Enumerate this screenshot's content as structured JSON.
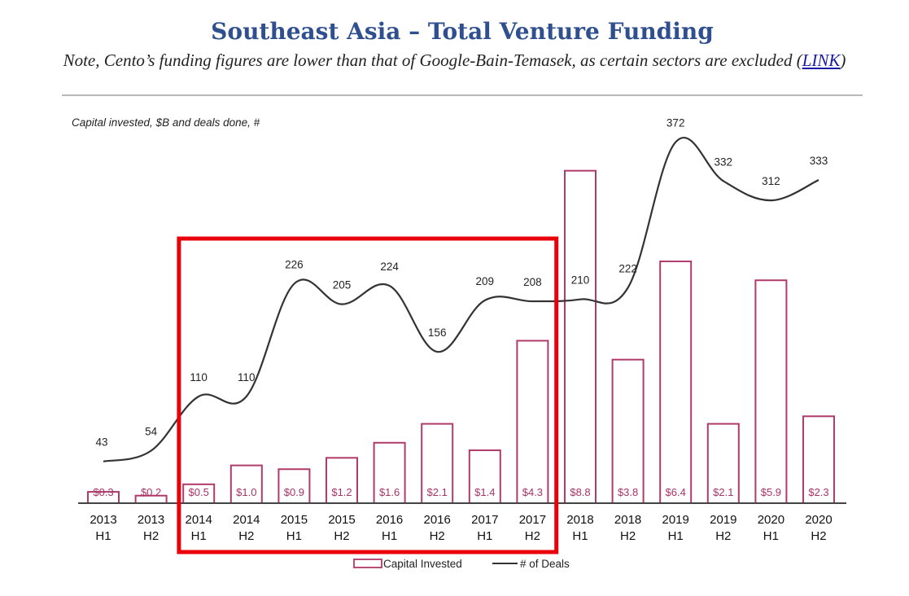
{
  "header": {
    "title": "Southeast Asia – Total Venture Funding",
    "note_prefix": "Note, Cento’s funding figures are lower than that of Google-Bain-Temasek, as certain sectors are excluded (",
    "note_link": "LINK",
    "note_suffix": ")"
  },
  "colors": {
    "title": "#2f4f8f",
    "bar_stroke": "#b03a6a",
    "bar_label": "#a83264",
    "line": "#333333",
    "highlight_box": "#e8000b"
  },
  "chart_data": {
    "type": "bar",
    "title": "Capital invested, $B and deals done, #",
    "categories": [
      [
        "2013",
        "H1"
      ],
      [
        "2013",
        "H2"
      ],
      [
        "2014",
        "H1"
      ],
      [
        "2014",
        "H2"
      ],
      [
        "2015",
        "H1"
      ],
      [
        "2015",
        "H2"
      ],
      [
        "2016",
        "H1"
      ],
      [
        "2016",
        "H2"
      ],
      [
        "2017",
        "H1"
      ],
      [
        "2017",
        "H2"
      ],
      [
        "2018",
        "H1"
      ],
      [
        "2018",
        "H2"
      ],
      [
        "2019",
        "H1"
      ],
      [
        "2019",
        "H2"
      ],
      [
        "2020",
        "H1"
      ],
      [
        "2020",
        "H2"
      ]
    ],
    "series": [
      {
        "name": "Capital Invested",
        "type": "bar",
        "values": [
          0.3,
          0.2,
          0.5,
          1.0,
          0.9,
          1.2,
          1.6,
          2.1,
          1.4,
          4.3,
          8.8,
          3.8,
          6.4,
          2.1,
          5.9,
          2.3
        ],
        "labels": [
          "$0.3",
          "$0.2",
          "$0.5",
          "$1.0",
          "$0.9",
          "$1.2",
          "$1.6",
          "$2.1",
          "$1.4",
          "$4.3",
          "$8.8",
          "$3.8",
          "$6.4",
          "$2.1",
          "$5.9",
          "$2.3"
        ]
      },
      {
        "name": "# of Deals",
        "type": "line",
        "values": [
          43,
          54,
          110,
          110,
          226,
          205,
          224,
          156,
          209,
          208,
          210,
          222,
          372,
          332,
          312,
          333
        ],
        "labels": [
          "43",
          "54",
          "110",
          "110",
          "226",
          "205",
          "224",
          "156",
          "209",
          "208",
          "210",
          "222",
          "372",
          "332",
          "312",
          "333"
        ]
      }
    ],
    "legend": [
      "Capital Invested",
      "# of Deals"
    ],
    "legend_position": "bottom-center",
    "highlight_range": [
      "2014 H1",
      "2017 H2"
    ],
    "ylim_bars": [
      0,
      10
    ],
    "ylim_line": [
      0,
      400
    ]
  }
}
